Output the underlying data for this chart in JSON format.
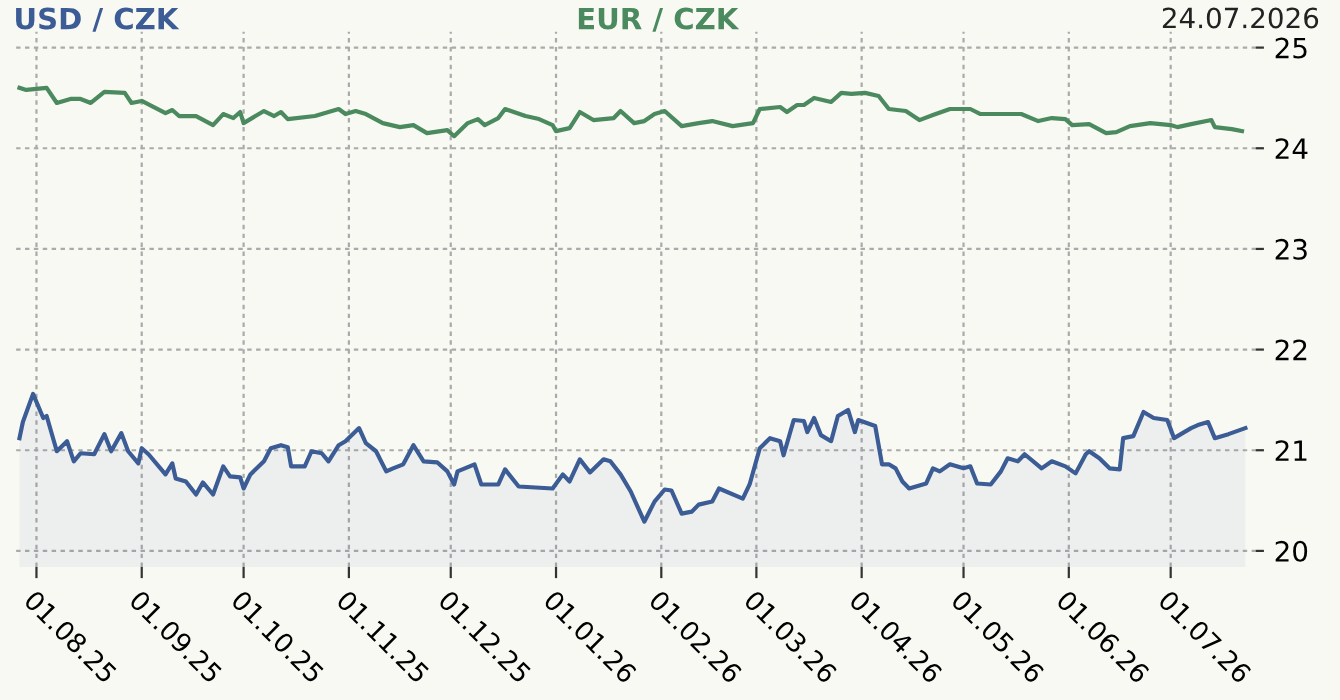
{
  "chart_data": {
    "type": "line",
    "annotations": [
      "24.07.2026"
    ],
    "xlim": [
      "2025-07-26",
      "2026-07-26"
    ],
    "xticks": [
      {
        "value": "2025-08-01",
        "label": "01.08.25"
      },
      {
        "value": "2025-09-01",
        "label": "01.09.25"
      },
      {
        "value": "2025-10-01",
        "label": "01.10.25"
      },
      {
        "value": "2025-11-01",
        "label": "01.11.25"
      },
      {
        "value": "2025-12-01",
        "label": "01.12.25"
      },
      {
        "value": "2026-01-01",
        "label": "01.01.26"
      },
      {
        "value": "2026-02-01",
        "label": "01.02.26"
      },
      {
        "value": "2026-03-01",
        "label": "01.03.26"
      },
      {
        "value": "2026-04-01",
        "label": "01.04.26"
      },
      {
        "value": "2026-05-01",
        "label": "01.05.26"
      },
      {
        "value": "2026-06-01",
        "label": "01.06.26"
      },
      {
        "value": "2026-07-01",
        "label": "01.07.26"
      }
    ],
    "ylim": [
      19.84,
      25.16
    ],
    "yticks": [
      20,
      21,
      22,
      23,
      24,
      25
    ],
    "grid": true,
    "series": [
      {
        "name": "USD / CZK",
        "type": "area",
        "color": "#3b5c94",
        "x": [
          "2025-07-27",
          "2025-07-28",
          "2025-07-31",
          "2025-08-03",
          "2025-08-04",
          "2025-08-07",
          "2025-08-10",
          "2025-08-12",
          "2025-08-14",
          "2025-08-18",
          "2025-08-21",
          "2025-08-23",
          "2025-08-26",
          "2025-08-28",
          "2025-08-31",
          "2025-09-01",
          "2025-09-03",
          "2025-09-08",
          "2025-09-10",
          "2025-09-11",
          "2025-09-14",
          "2025-09-17",
          "2025-09-19",
          "2025-09-22",
          "2025-09-25",
          "2025-09-27",
          "2025-09-30",
          "2025-10-01",
          "2025-10-03",
          "2025-10-07",
          "2025-10-09",
          "2025-10-12",
          "2025-10-14",
          "2025-10-15",
          "2025-10-19",
          "2025-10-21",
          "2025-10-24",
          "2025-10-26",
          "2025-10-29",
          "2025-10-31",
          "2025-11-04",
          "2025-11-06",
          "2025-11-09",
          "2025-11-12",
          "2025-11-14",
          "2025-11-17",
          "2025-11-20",
          "2025-11-23",
          "2025-11-27",
          "2025-11-30",
          "2025-12-02",
          "2025-12-03",
          "2025-12-08",
          "2025-12-10",
          "2025-12-15",
          "2025-12-17",
          "2025-12-21",
          "2025-12-31",
          "2026-01-03",
          "2026-01-05",
          "2026-01-08",
          "2026-01-11",
          "2026-01-15",
          "2026-01-17",
          "2026-01-20",
          "2026-01-23",
          "2026-01-27",
          "2026-01-30",
          "2026-02-02",
          "2026-02-04",
          "2026-02-07",
          "2026-02-10",
          "2026-02-12",
          "2026-02-16",
          "2026-02-18",
          "2026-02-25",
          "2026-02-27",
          "2026-03-02",
          "2026-03-05",
          "2026-03-08",
          "2026-03-09",
          "2026-03-12",
          "2026-03-15",
          "2026-03-16",
          "2026-03-18",
          "2026-03-20",
          "2026-03-23",
          "2026-03-25",
          "2026-03-28",
          "2026-03-30",
          "2026-03-31",
          "2026-04-05",
          "2026-04-07",
          "2026-04-09",
          "2026-04-11",
          "2026-04-13",
          "2026-04-15",
          "2026-04-20",
          "2026-04-22",
          "2026-04-24",
          "2026-04-27",
          "2026-05-01",
          "2026-05-03",
          "2026-05-05",
          "2026-05-09",
          "2026-05-12",
          "2026-05-14",
          "2026-05-17",
          "2026-05-19",
          "2026-05-24",
          "2026-05-27",
          "2026-05-31",
          "2026-06-03",
          "2026-06-06",
          "2026-06-07",
          "2026-06-10",
          "2026-06-13",
          "2026-06-16",
          "2026-06-17",
          "2026-06-20",
          "2026-06-23",
          "2026-06-26",
          "2026-06-30",
          "2026-07-02",
          "2026-07-07",
          "2026-07-09",
          "2026-07-12",
          "2026-07-14",
          "2026-07-18",
          "2026-07-23"
        ],
        "values": [
          21.12,
          21.28,
          21.56,
          21.32,
          21.34,
          20.99,
          21.09,
          20.89,
          20.97,
          20.96,
          21.16,
          20.99,
          21.17,
          20.99,
          20.87,
          21.02,
          20.96,
          20.76,
          20.87,
          20.72,
          20.69,
          20.56,
          20.68,
          20.56,
          20.84,
          20.74,
          20.73,
          20.62,
          20.76,
          20.89,
          21.02,
          21.05,
          21.03,
          20.84,
          20.84,
          20.99,
          20.97,
          20.89,
          21.05,
          21.09,
          21.22,
          21.07,
          20.99,
          20.79,
          20.82,
          20.86,
          21.05,
          20.89,
          20.88,
          20.79,
          20.66,
          20.79,
          20.86,
          20.66,
          20.66,
          20.81,
          20.64,
          20.62,
          20.76,
          20.69,
          20.91,
          20.78,
          20.91,
          20.89,
          20.76,
          20.59,
          20.29,
          20.49,
          20.61,
          20.6,
          20.37,
          20.39,
          20.46,
          20.49,
          20.62,
          20.52,
          20.66,
          21.02,
          21.12,
          21.09,
          20.95,
          21.3,
          21.29,
          21.18,
          21.32,
          21.15,
          21.09,
          21.34,
          21.4,
          21.18,
          21.3,
          21.24,
          20.86,
          20.86,
          20.82,
          20.69,
          20.62,
          20.67,
          20.82,
          20.79,
          20.86,
          20.82,
          20.84,
          20.67,
          20.66,
          20.79,
          20.92,
          20.89,
          20.96,
          20.82,
          20.89,
          20.84,
          20.77,
          20.96,
          20.99,
          20.92,
          20.82,
          20.81,
          21.12,
          21.14,
          21.38,
          21.32,
          21.3,
          21.12,
          21.22,
          21.25,
          21.28,
          21.12,
          21.16,
          21.22
        ]
      },
      {
        "name": "EUR / CZK",
        "color": "#4a8a5e",
        "x": [
          "2025-07-27",
          "2025-07-29",
          "2025-08-04",
          "2025-08-07",
          "2025-08-11",
          "2025-08-14",
          "2025-08-17",
          "2025-08-21",
          "2025-08-27",
          "2025-08-29",
          "2025-09-01",
          "2025-09-08",
          "2025-09-10",
          "2025-09-12",
          "2025-09-17",
          "2025-09-22",
          "2025-09-25",
          "2025-09-28",
          "2025-09-30",
          "2025-10-01",
          "2025-10-07",
          "2025-10-10",
          "2025-10-12",
          "2025-10-14",
          "2025-10-22",
          "2025-10-26",
          "2025-10-29",
          "2025-10-31",
          "2025-11-03",
          "2025-11-06",
          "2025-11-11",
          "2025-11-16",
          "2025-11-20",
          "2025-11-24",
          "2025-11-30",
          "2025-12-02",
          "2025-12-06",
          "2025-12-09",
          "2025-12-11",
          "2025-12-15",
          "2025-12-17",
          "2025-12-23",
          "2025-12-27",
          "2025-12-31",
          "2026-01-01",
          "2026-01-05",
          "2026-01-08",
          "2026-01-12",
          "2026-01-18",
          "2026-01-20",
          "2026-01-24",
          "2026-01-27",
          "2026-01-30",
          "2026-02-02",
          "2026-02-07",
          "2026-02-12",
          "2026-02-16",
          "2026-02-22",
          "2026-02-28",
          "2026-03-02",
          "2026-03-08",
          "2026-03-10",
          "2026-03-13",
          "2026-03-15",
          "2026-03-18",
          "2026-03-23",
          "2026-03-26",
          "2026-03-29",
          "2026-04-02",
          "2026-04-06",
          "2026-04-09",
          "2026-04-14",
          "2026-04-18",
          "2026-04-22",
          "2026-04-27",
          "2026-05-03",
          "2026-05-06",
          "2026-05-13",
          "2026-05-18",
          "2026-05-23",
          "2026-05-27",
          "2026-05-31",
          "2026-06-02",
          "2026-06-07",
          "2026-06-12",
          "2026-06-15",
          "2026-06-19",
          "2026-06-25",
          "2026-07-01",
          "2026-07-03",
          "2026-07-07",
          "2026-07-13",
          "2026-07-14",
          "2026-07-19",
          "2026-07-22"
        ],
        "values": [
          24.6,
          24.58,
          24.6,
          24.45,
          24.49,
          24.49,
          24.45,
          24.56,
          24.55,
          24.45,
          24.47,
          24.35,
          24.38,
          24.32,
          24.32,
          24.23,
          24.34,
          24.3,
          24.36,
          24.25,
          24.37,
          24.32,
          24.36,
          24.29,
          24.32,
          24.36,
          24.39,
          24.34,
          24.37,
          24.34,
          24.25,
          24.21,
          24.23,
          24.15,
          24.18,
          24.12,
          24.25,
          24.29,
          24.23,
          24.3,
          24.39,
          24.32,
          24.29,
          24.23,
          24.17,
          24.2,
          24.36,
          24.28,
          24.3,
          24.37,
          24.25,
          24.27,
          24.34,
          24.37,
          24.22,
          24.25,
          24.27,
          24.22,
          24.25,
          24.39,
          24.41,
          24.36,
          24.43,
          24.43,
          24.5,
          24.46,
          24.55,
          24.54,
          24.55,
          24.52,
          24.39,
          24.37,
          24.28,
          24.33,
          24.39,
          24.39,
          24.34,
          24.34,
          24.34,
          24.27,
          24.3,
          24.29,
          24.23,
          24.24,
          24.15,
          24.16,
          24.22,
          24.25,
          24.23,
          24.21,
          24.24,
          24.28,
          24.21,
          24.19,
          24.17
        ]
      }
    ]
  }
}
